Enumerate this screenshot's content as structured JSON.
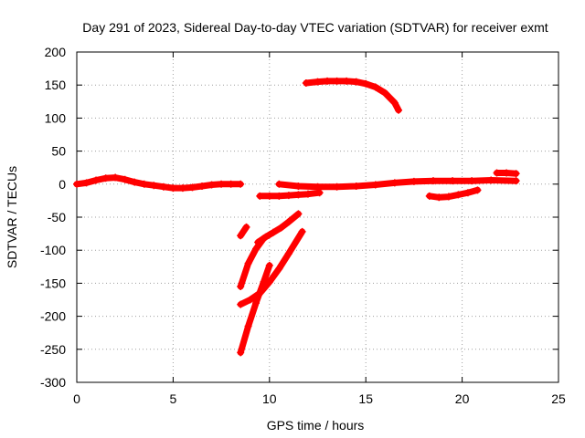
{
  "chart_data": {
    "type": "scatter",
    "title": "Day 291 of 2023, Sidereal Day-to-day VTEC variation (SDTVAR) for receiver exmt",
    "xlabel": "GPS time / hours",
    "ylabel": "SDTVAR / TECUs",
    "xlim": [
      0,
      25
    ],
    "ylim": [
      -300,
      200
    ],
    "xticks": [
      0,
      5,
      10,
      15,
      20,
      25
    ],
    "yticks": [
      -300,
      -250,
      -200,
      -150,
      -100,
      -50,
      0,
      50,
      100,
      150,
      200
    ],
    "grid": true,
    "legend": "none",
    "color": "#ff0000",
    "series": [
      {
        "x": [
          0.0,
          0.5,
          1.0,
          1.5,
          2.0,
          2.5,
          3.0,
          3.5,
          4.0,
          4.5,
          5.0,
          5.5,
          6.0,
          6.5,
          7.0,
          7.5,
          8.0,
          8.5
        ],
        "y": [
          0,
          2,
          6,
          9,
          10,
          7,
          3,
          0,
          -2,
          -4,
          -6,
          -6,
          -5,
          -3,
          -1,
          0,
          0,
          0
        ]
      },
      {
        "x": [
          8.5,
          8.8
        ],
        "y": [
          -78,
          -65
        ]
      },
      {
        "x": [
          8.5,
          8.9,
          9.3,
          9.7
        ],
        "y": [
          -155,
          -120,
          -98,
          -82
        ]
      },
      {
        "x": [
          9.4,
          9.8,
          10.2,
          10.6,
          11.0,
          11.5
        ],
        "y": [
          -88,
          -80,
          -73,
          -66,
          -57,
          -45
        ]
      },
      {
        "x": [
          8.5,
          9.0,
          9.5,
          10.0,
          10.5,
          11.0,
          11.7
        ],
        "y": [
          -182,
          -175,
          -165,
          -148,
          -128,
          -105,
          -72
        ]
      },
      {
        "x": [
          8.5,
          8.9,
          9.3,
          9.7,
          10.0
        ],
        "y": [
          -255,
          -215,
          -180,
          -148,
          -123
        ]
      },
      {
        "x": [
          9.5,
          10.0,
          10.5,
          11.0,
          11.5,
          12.0,
          12.6
        ],
        "y": [
          -18,
          -18,
          -18,
          -17,
          -16,
          -15,
          -13
        ]
      },
      {
        "x": [
          10.5,
          11.5,
          12.5,
          13.5,
          14.5,
          15.5,
          16.5,
          17.5,
          18.5,
          19.5,
          20.5,
          21.5,
          22.8
        ],
        "y": [
          0,
          -3,
          -4,
          -4,
          -3,
          -1,
          2,
          4,
          5,
          5,
          5,
          6,
          5
        ]
      },
      {
        "x": [
          18.3,
          18.8,
          19.3,
          19.8,
          20.3,
          20.8
        ],
        "y": [
          -18,
          -20,
          -19,
          -16,
          -13,
          -9
        ]
      },
      {
        "x": [
          21.8,
          22.3,
          22.8
        ],
        "y": [
          17,
          17,
          16
        ]
      },
      {
        "x": [
          11.9,
          12.5,
          13.0,
          13.5,
          14.0,
          14.5,
          15.0,
          15.5,
          16.0,
          16.5,
          16.7
        ],
        "y": [
          153,
          155,
          156,
          156,
          156,
          155,
          152,
          147,
          138,
          123,
          112
        ]
      }
    ]
  }
}
